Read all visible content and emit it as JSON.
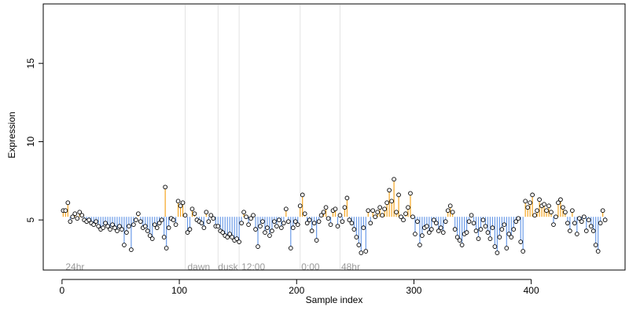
{
  "chart_data": {
    "type": "scatter",
    "xlabel": "Sample index",
    "ylabel": "Expression",
    "xlim": [
      -16,
      480
    ],
    "ylim": [
      1.8,
      18.8
    ],
    "xticks": [
      0,
      100,
      200,
      300,
      400
    ],
    "yticks": [
      5,
      10,
      15
    ],
    "baseline": 5.2,
    "grid": false,
    "colors": {
      "above": "#f5a623",
      "below": "#6b9be8",
      "vline": "#e3e3e3",
      "annotation": "#9a9a9a",
      "point_stroke": "#000000",
      "point_fill": "#ffffff"
    },
    "vlines": [
      105,
      133,
      151,
      203,
      237
    ],
    "annotations": [
      {
        "x": 3,
        "y": 2.0,
        "label": "24hr"
      },
      {
        "x": 107,
        "y": 2.0,
        "label": "dawn"
      },
      {
        "x": 133,
        "y": 2.0,
        "label": "dusk"
      },
      {
        "x": 153,
        "y": 2.0,
        "label": "12:00"
      },
      {
        "x": 204,
        "y": 2.0,
        "label": "0:00"
      },
      {
        "x": 238,
        "y": 2.0,
        "label": "48hr"
      }
    ],
    "series": [
      {
        "points": [
          [
            1,
            5.6
          ],
          [
            3,
            5.6
          ],
          [
            5,
            6.1
          ],
          [
            7,
            4.9
          ],
          [
            9,
            5.2
          ],
          [
            11,
            5.4
          ],
          [
            13,
            5.1
          ],
          [
            15,
            5.5
          ],
          [
            17,
            5.3
          ],
          [
            19,
            5.0
          ],
          [
            21,
            4.9
          ],
          [
            23,
            5.0
          ],
          [
            25,
            4.8
          ],
          [
            27,
            4.7
          ],
          [
            29,
            4.9
          ],
          [
            31,
            4.6
          ],
          [
            33,
            4.4
          ],
          [
            35,
            4.5
          ],
          [
            37,
            4.8
          ],
          [
            39,
            4.6
          ],
          [
            41,
            4.4
          ],
          [
            43,
            4.7
          ],
          [
            45,
            4.5
          ],
          [
            47,
            4.3
          ],
          [
            49,
            4.6
          ],
          [
            51,
            4.4
          ],
          [
            53,
            3.4
          ],
          [
            55,
            4.2
          ],
          [
            57,
            4.6
          ],
          [
            59,
            3.1
          ],
          [
            61,
            4.7
          ],
          [
            63,
            5.0
          ],
          [
            65,
            5.4
          ],
          [
            67,
            4.9
          ],
          [
            69,
            4.5
          ],
          [
            71,
            4.6
          ],
          [
            73,
            4.3
          ],
          [
            75,
            4.0
          ],
          [
            77,
            3.8
          ],
          [
            79,
            4.7
          ],
          [
            81,
            4.5
          ],
          [
            83,
            4.8
          ],
          [
            85,
            5.0
          ],
          [
            87,
            3.9
          ],
          [
            88,
            7.1
          ],
          [
            89,
            3.2
          ],
          [
            91,
            4.5
          ],
          [
            93,
            5.1
          ],
          [
            95,
            5.0
          ],
          [
            97,
            4.7
          ],
          [
            99,
            6.2
          ],
          [
            101,
            5.9
          ],
          [
            103,
            6.1
          ],
          [
            105,
            5.3
          ],
          [
            107,
            4.2
          ],
          [
            109,
            4.4
          ],
          [
            111,
            5.7
          ],
          [
            113,
            5.4
          ],
          [
            115,
            5.0
          ],
          [
            117,
            4.9
          ],
          [
            119,
            4.8
          ],
          [
            121,
            4.5
          ],
          [
            123,
            5.5
          ],
          [
            125,
            4.9
          ],
          [
            127,
            5.3
          ],
          [
            129,
            5.1
          ],
          [
            131,
            4.6
          ],
          [
            133,
            4.6
          ],
          [
            135,
            4.3
          ],
          [
            137,
            4.2
          ],
          [
            139,
            4.0
          ],
          [
            141,
            3.9
          ],
          [
            143,
            4.1
          ],
          [
            145,
            3.9
          ],
          [
            147,
            3.7
          ],
          [
            149,
            3.8
          ],
          [
            151,
            3.6
          ],
          [
            153,
            4.8
          ],
          [
            155,
            5.5
          ],
          [
            157,
            5.2
          ],
          [
            159,
            4.7
          ],
          [
            161,
            5.1
          ],
          [
            163,
            5.3
          ],
          [
            165,
            4.4
          ],
          [
            167,
            3.3
          ],
          [
            169,
            4.6
          ],
          [
            171,
            4.9
          ],
          [
            173,
            4.2
          ],
          [
            175,
            4.5
          ],
          [
            177,
            4.0
          ],
          [
            179,
            4.3
          ],
          [
            181,
            4.9
          ],
          [
            183,
            4.6
          ],
          [
            185,
            5.0
          ],
          [
            187,
            4.5
          ],
          [
            189,
            4.8
          ],
          [
            191,
            5.7
          ],
          [
            193,
            4.9
          ],
          [
            195,
            3.2
          ],
          [
            197,
            4.5
          ],
          [
            199,
            4.9
          ],
          [
            201,
            4.7
          ],
          [
            203,
            5.9
          ],
          [
            205,
            6.6
          ],
          [
            207,
            5.4
          ],
          [
            209,
            4.8
          ],
          [
            211,
            5.0
          ],
          [
            213,
            4.3
          ],
          [
            215,
            4.8
          ],
          [
            217,
            3.7
          ],
          [
            219,
            4.9
          ],
          [
            221,
            5.3
          ],
          [
            223,
            5.5
          ],
          [
            225,
            5.8
          ],
          [
            227,
            5.1
          ],
          [
            229,
            4.7
          ],
          [
            231,
            5.6
          ],
          [
            233,
            5.7
          ],
          [
            235,
            4.6
          ],
          [
            237,
            5.3
          ],
          [
            239,
            4.9
          ],
          [
            241,
            5.8
          ],
          [
            243,
            6.4
          ],
          [
            245,
            5.0
          ],
          [
            247,
            4.8
          ],
          [
            249,
            4.4
          ],
          [
            251,
            3.9
          ],
          [
            253,
            3.4
          ],
          [
            255,
            2.9
          ],
          [
            257,
            4.5
          ],
          [
            259,
            3.0
          ],
          [
            261,
            5.6
          ],
          [
            263,
            4.8
          ],
          [
            265,
            5.6
          ],
          [
            267,
            5.2
          ],
          [
            269,
            5.5
          ],
          [
            271,
            5.8
          ],
          [
            273,
            5.3
          ],
          [
            275,
            5.7
          ],
          [
            277,
            6.1
          ],
          [
            279,
            6.9
          ],
          [
            281,
            6.2
          ],
          [
            283,
            7.6
          ],
          [
            285,
            5.5
          ],
          [
            287,
            6.6
          ],
          [
            289,
            5.2
          ],
          [
            291,
            5.0
          ],
          [
            293,
            5.4
          ],
          [
            295,
            5.8
          ],
          [
            297,
            6.7
          ],
          [
            299,
            5.2
          ],
          [
            301,
            4.1
          ],
          [
            303,
            4.9
          ],
          [
            305,
            3.4
          ],
          [
            307,
            4.0
          ],
          [
            309,
            4.5
          ],
          [
            311,
            4.6
          ],
          [
            313,
            4.2
          ],
          [
            315,
            4.4
          ],
          [
            317,
            5.0
          ],
          [
            319,
            4.8
          ],
          [
            321,
            4.3
          ],
          [
            323,
            4.5
          ],
          [
            325,
            4.2
          ],
          [
            327,
            4.9
          ],
          [
            329,
            5.6
          ],
          [
            331,
            5.9
          ],
          [
            333,
            5.5
          ],
          [
            335,
            4.4
          ],
          [
            337,
            3.9
          ],
          [
            339,
            3.7
          ],
          [
            341,
            3.4
          ],
          [
            343,
            4.1
          ],
          [
            345,
            4.2
          ],
          [
            347,
            4.9
          ],
          [
            349,
            5.3
          ],
          [
            351,
            4.8
          ],
          [
            353,
            4.3
          ],
          [
            355,
            3.8
          ],
          [
            357,
            4.4
          ],
          [
            359,
            5.0
          ],
          [
            361,
            4.6
          ],
          [
            363,
            4.2
          ],
          [
            365,
            3.8
          ],
          [
            367,
            4.5
          ],
          [
            369,
            3.3
          ],
          [
            371,
            2.9
          ],
          [
            373,
            3.9
          ],
          [
            375,
            4.4
          ],
          [
            377,
            4.7
          ],
          [
            379,
            3.2
          ],
          [
            381,
            4.1
          ],
          [
            383,
            3.9
          ],
          [
            385,
            4.4
          ],
          [
            387,
            4.9
          ],
          [
            389,
            5.1
          ],
          [
            391,
            3.6
          ],
          [
            393,
            3.0
          ],
          [
            395,
            6.2
          ],
          [
            397,
            5.8
          ],
          [
            399,
            6.1
          ],
          [
            401,
            6.6
          ],
          [
            403,
            5.3
          ],
          [
            405,
            5.6
          ],
          [
            407,
            6.3
          ],
          [
            409,
            5.9
          ],
          [
            411,
            6.0
          ],
          [
            413,
            5.6
          ],
          [
            415,
            5.9
          ],
          [
            417,
            5.5
          ],
          [
            419,
            4.7
          ],
          [
            421,
            5.2
          ],
          [
            423,
            6.1
          ],
          [
            425,
            6.3
          ],
          [
            427,
            5.8
          ],
          [
            429,
            5.5
          ],
          [
            431,
            4.8
          ],
          [
            433,
            4.3
          ],
          [
            435,
            5.6
          ],
          [
            437,
            4.8
          ],
          [
            439,
            4.1
          ],
          [
            441,
            5.1
          ],
          [
            443,
            4.9
          ],
          [
            445,
            5.2
          ],
          [
            447,
            4.3
          ],
          [
            449,
            5.0
          ],
          [
            451,
            4.6
          ],
          [
            453,
            4.3
          ],
          [
            455,
            3.4
          ],
          [
            457,
            3.0
          ],
          [
            459,
            4.8
          ],
          [
            461,
            5.6
          ],
          [
            463,
            5.0
          ]
        ]
      }
    ]
  }
}
